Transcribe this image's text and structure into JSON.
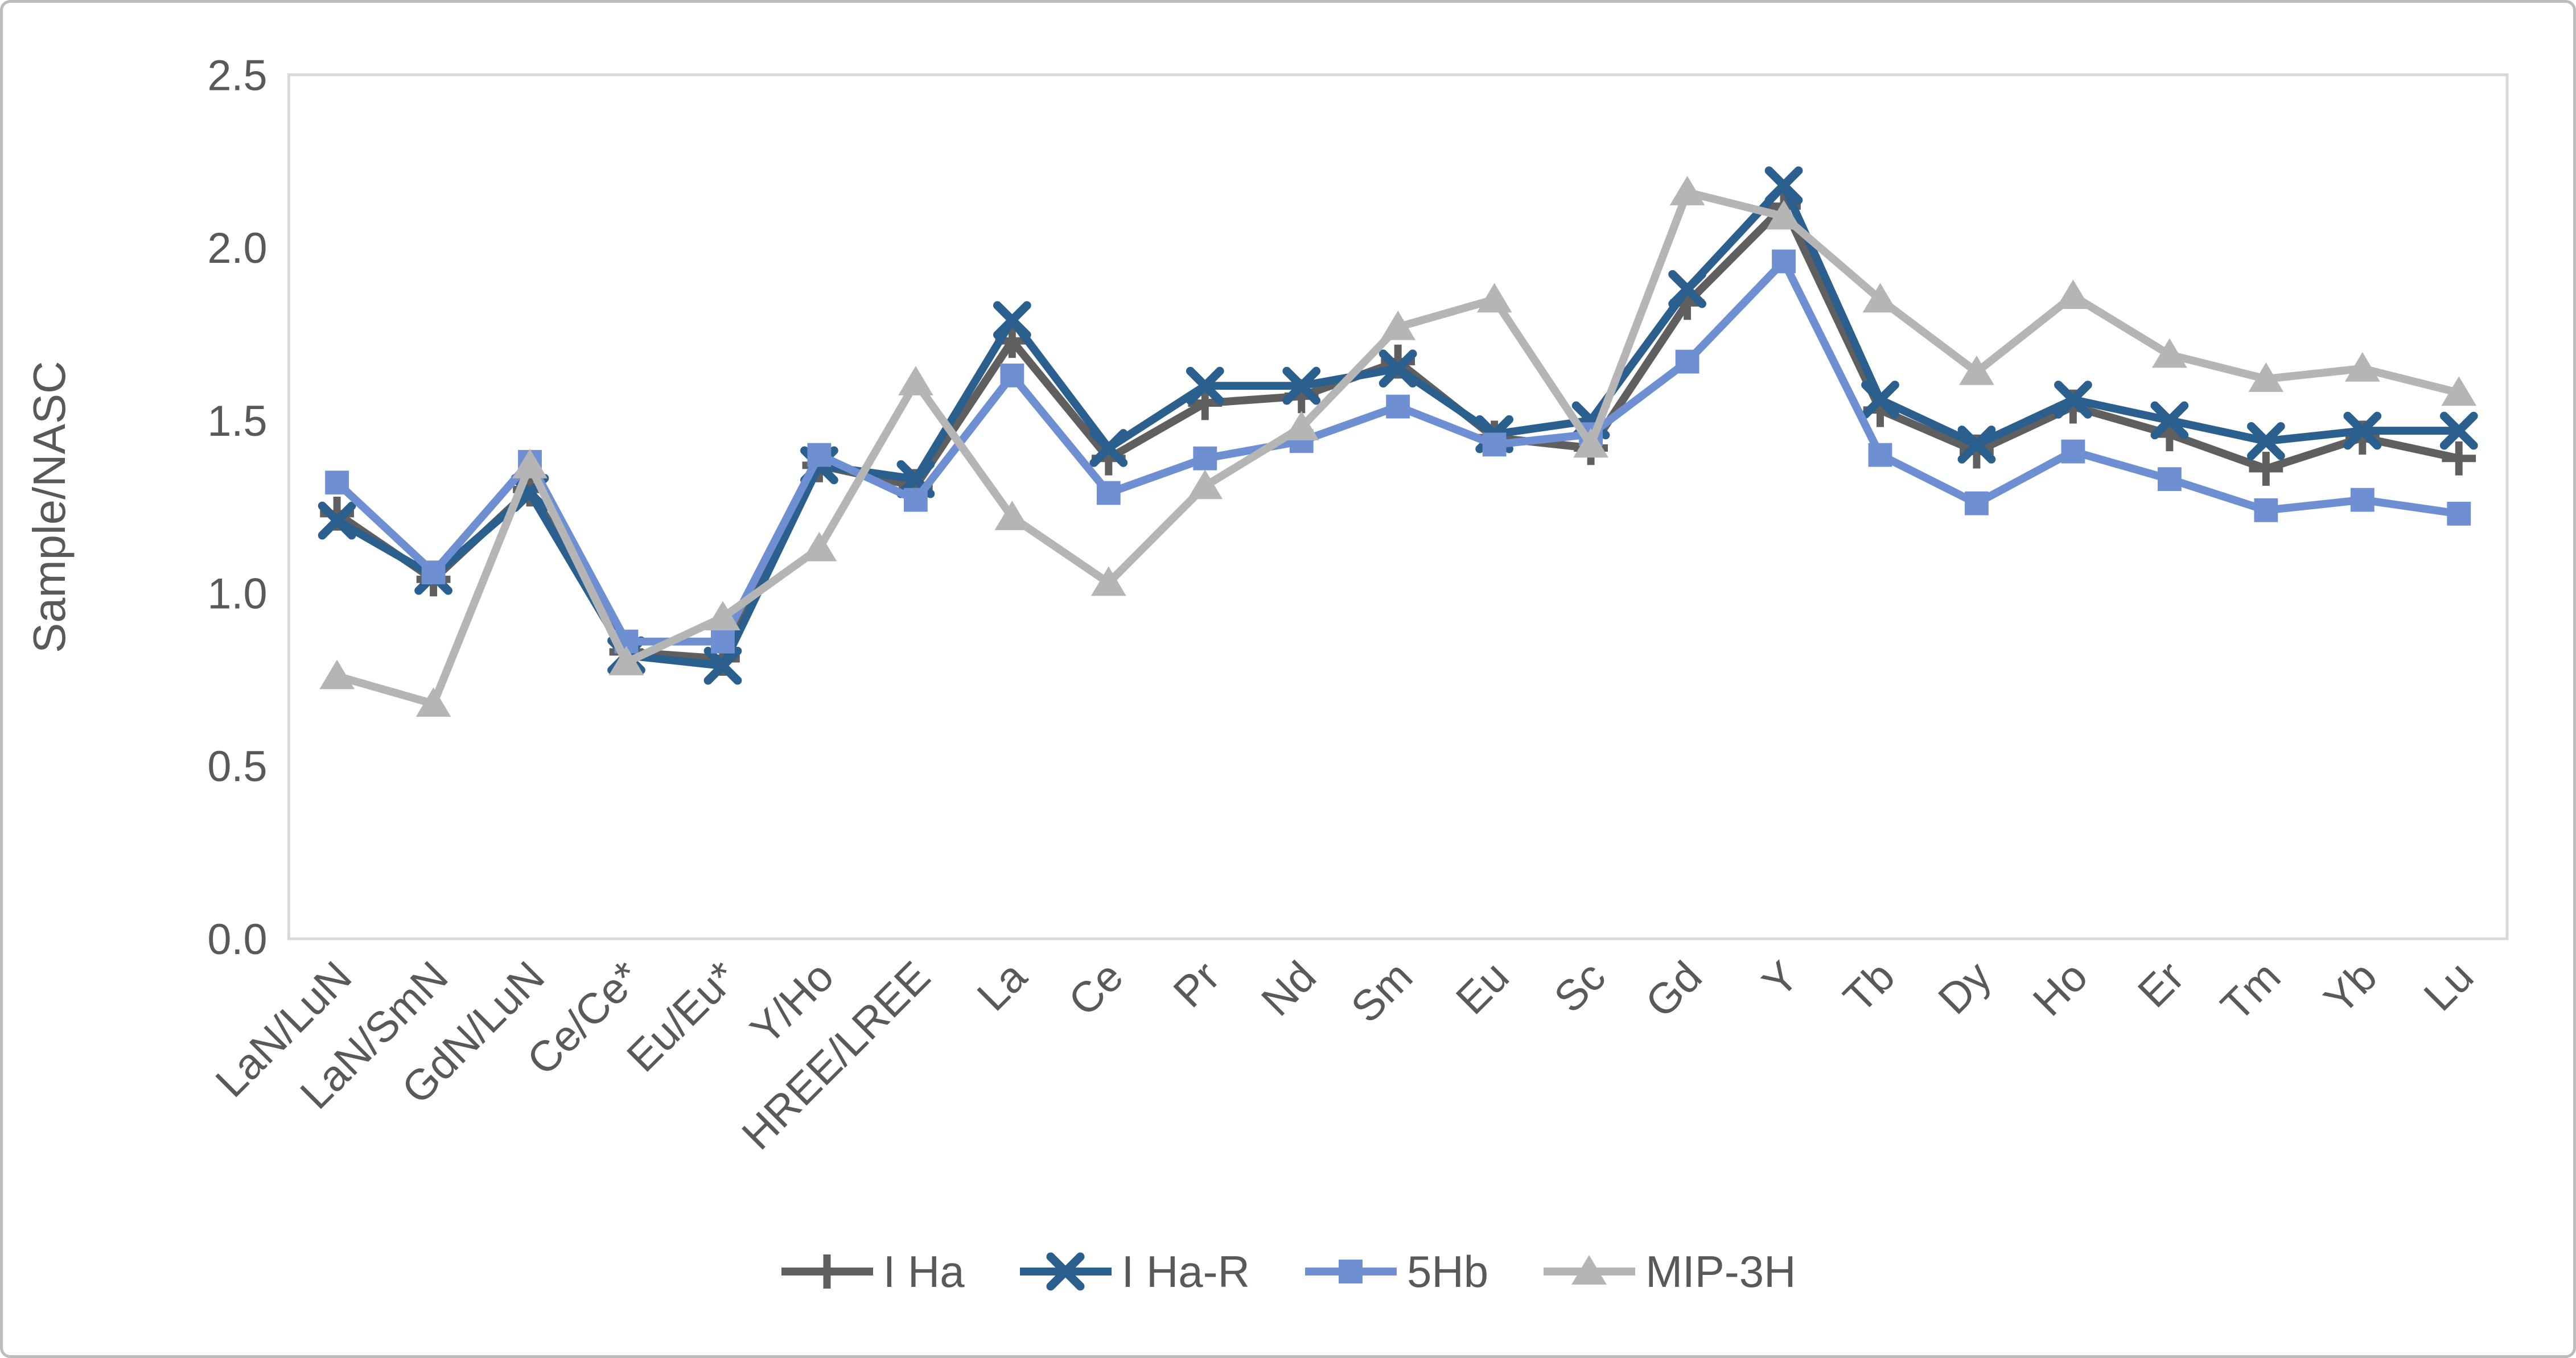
{
  "chart_data": {
    "type": "line",
    "title": "",
    "xlabel": "",
    "ylabel": "Sample/NASC",
    "ylim": [
      0,
      2.5
    ],
    "yticks": [
      "0.0",
      "0.5",
      "1.0",
      "1.5",
      "2.0",
      "2.5"
    ],
    "grid": false,
    "legend_position": "bottom",
    "axis_color": "#d9d9d9",
    "text_color": "#595959",
    "categories": [
      "LaN/LuN",
      "LaN/SmN",
      "GdN/LuN",
      "Ce/Ce*",
      "Eu/Eu*",
      "Y/Ho",
      "HREE/LREE",
      "La",
      "Ce",
      "Pr",
      "Nd",
      "Sm",
      "Eu",
      "Sc",
      "Gd",
      "Y",
      "Tb",
      "Dy",
      "Ho",
      "Er",
      "Tm",
      "Yb",
      "Lu"
    ],
    "series": [
      {
        "name": "I Ha",
        "color": "#5f5f5f",
        "marker": "plus",
        "values": [
          1.23,
          1.04,
          1.3,
          0.83,
          0.81,
          1.37,
          1.31,
          1.73,
          1.39,
          1.55,
          1.57,
          1.67,
          1.45,
          1.42,
          1.84,
          2.12,
          1.53,
          1.41,
          1.54,
          1.46,
          1.36,
          1.45,
          1.39
        ]
      },
      {
        "name": "I Ha-R",
        "color": "#2a5f8e",
        "marker": "x",
        "values": [
          1.21,
          1.05,
          1.29,
          0.82,
          0.79,
          1.37,
          1.33,
          1.79,
          1.42,
          1.6,
          1.6,
          1.65,
          1.46,
          1.5,
          1.88,
          2.18,
          1.56,
          1.43,
          1.56,
          1.5,
          1.44,
          1.47,
          1.47
        ]
      },
      {
        "name": "5Hb",
        "color": "#6e90d2",
        "marker": "square",
        "values": [
          1.32,
          1.06,
          1.38,
          0.86,
          0.86,
          1.4,
          1.27,
          1.63,
          1.29,
          1.39,
          1.44,
          1.54,
          1.43,
          1.46,
          1.67,
          1.96,
          1.4,
          1.26,
          1.41,
          1.33,
          1.24,
          1.27,
          1.23
        ]
      },
      {
        "name": "MIP-3H",
        "color": "#b5b5b5",
        "marker": "triangle",
        "values": [
          0.76,
          0.68,
          1.37,
          0.8,
          0.93,
          1.13,
          1.61,
          1.22,
          1.03,
          1.31,
          1.48,
          1.77,
          1.85,
          1.43,
          2.16,
          2.09,
          1.85,
          1.64,
          1.86,
          1.69,
          1.62,
          1.65,
          1.58
        ]
      }
    ]
  }
}
